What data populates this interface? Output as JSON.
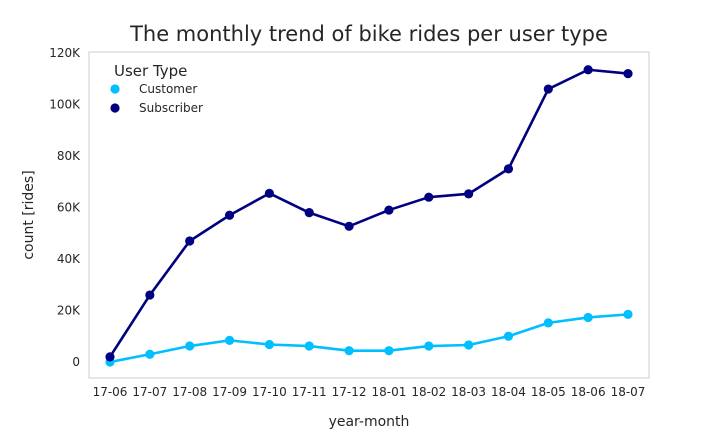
{
  "chart_data": {
    "type": "line",
    "title": "The monthly trend of bike rides per user type",
    "xlabel": "year-month",
    "ylabel": "count [rides]",
    "ylim": [
      0,
      120000
    ],
    "yticks": [
      0,
      20000,
      40000,
      60000,
      80000,
      100000,
      120000
    ],
    "ytick_labels": [
      "0",
      "20K",
      "40K",
      "60K",
      "80K",
      "100K",
      "120K"
    ],
    "categories": [
      "17-06",
      "17-07",
      "17-08",
      "17-09",
      "17-10",
      "17-11",
      "17-12",
      "18-01",
      "18-02",
      "18-03",
      "18-04",
      "18-05",
      "18-06",
      "18-07"
    ],
    "grid": false,
    "legend": {
      "title": "User Type",
      "placement": "top-left"
    },
    "series": [
      {
        "name": "Customer",
        "color": "#00bfff",
        "values": [
          0,
          3000,
          6200,
          8400,
          6800,
          6200,
          4400,
          4400,
          6200,
          6600,
          10000,
          15200,
          17300,
          18500
        ]
      },
      {
        "name": "Subscriber",
        "color": "#000080",
        "values": [
          2000,
          26000,
          47000,
          57000,
          65500,
          58000,
          52700,
          59000,
          64000,
          65300,
          75000,
          106000,
          113500,
          112000
        ]
      }
    ]
  }
}
